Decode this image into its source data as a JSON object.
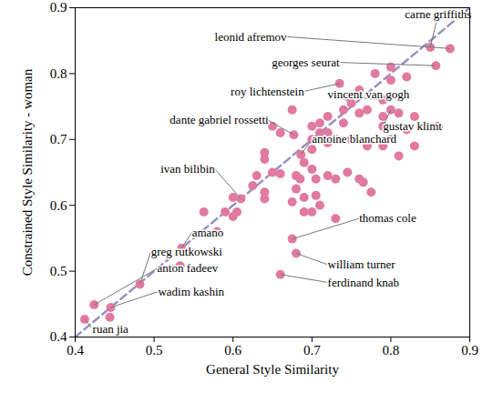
{
  "chart_data": {
    "type": "scatter",
    "xlabel": "General Style Similarity",
    "ylabel": "Constrained Style Similarity - woman",
    "xlim": [
      0.4,
      0.9
    ],
    "ylim": [
      0.4,
      0.9
    ],
    "xticks": [
      0.4,
      0.5,
      0.6,
      0.7,
      0.8,
      0.9
    ],
    "yticks": [
      0.4,
      0.5,
      0.6,
      0.7,
      0.8,
      0.9
    ],
    "color": "#e07aa0",
    "marker": "circle",
    "grid": false,
    "x": [
      0.85,
      0.875,
      0.857,
      0.735,
      0.79,
      0.677,
      0.8,
      0.686,
      0.61,
      0.675,
      0.535,
      0.68,
      0.66,
      0.482,
      0.424,
      0.445,
      0.412,
      0.8,
      0.82,
      0.8,
      0.78,
      0.76,
      0.745,
      0.75,
      0.77,
      0.79,
      0.76,
      0.74,
      0.72,
      0.74,
      0.71,
      0.72,
      0.7,
      0.73,
      0.75,
      0.79,
      0.8,
      0.81,
      0.82,
      0.83,
      0.83,
      0.81,
      0.86,
      0.79,
      0.77,
      0.675,
      0.7,
      0.71,
      0.72,
      0.7,
      0.69,
      0.68,
      0.7,
      0.64,
      0.64,
      0.65,
      0.66,
      0.63,
      0.625,
      0.64,
      0.64,
      0.6,
      0.605,
      0.6,
      0.59,
      0.563,
      0.58,
      0.68,
      0.675,
      0.69,
      0.705,
      0.69,
      0.7,
      0.71,
      0.73,
      0.76,
      0.765,
      0.775,
      0.745,
      0.73,
      0.72,
      0.705,
      0.685,
      0.66,
      0.65,
      0.533,
      0.444
    ],
    "y": [
      0.84,
      0.838,
      0.812,
      0.785,
      0.76,
      0.707,
      0.745,
      0.677,
      0.61,
      0.549,
      0.535,
      0.527,
      0.495,
      0.48,
      0.449,
      0.445,
      0.427,
      0.81,
      0.795,
      0.79,
      0.8,
      0.775,
      0.765,
      0.755,
      0.745,
      0.735,
      0.74,
      0.745,
      0.735,
      0.725,
      0.725,
      0.71,
      0.72,
      0.7,
      0.7,
      0.72,
      0.7,
      0.74,
      0.715,
      0.735,
      0.69,
      0.675,
      0.72,
      0.69,
      0.69,
      0.745,
      0.7,
      0.71,
      0.695,
      0.685,
      0.665,
      0.645,
      0.655,
      0.68,
      0.67,
      0.65,
      0.648,
      0.645,
      0.63,
      0.62,
      0.61,
      0.612,
      0.59,
      0.583,
      0.59,
      0.59,
      0.56,
      0.625,
      0.605,
      0.612,
      0.615,
      0.59,
      0.59,
      0.6,
      0.58,
      0.64,
      0.635,
      0.62,
      0.65,
      0.64,
      0.645,
      0.64,
      0.64,
      0.71,
      0.72,
      0.508,
      0.43
    ],
    "labels": [
      "carne griffiths",
      "leonid afremov",
      "georges seurat",
      "roy lichtenstein",
      "vincent van gogh",
      "dante gabriel rossetti",
      "gustav klimt",
      "antoine blanchard",
      "ivan bilibin",
      "thomas cole",
      "amano",
      "william turner",
      "ferdinand knab",
      "greg rutkowski",
      "anton fadeev",
      "wadim kashin",
      "ruan jia",
      null,
      null,
      null,
      null,
      null,
      null,
      null,
      null,
      null,
      null,
      null,
      null,
      null,
      null,
      null,
      null,
      null,
      null,
      null,
      null,
      null,
      null,
      null,
      null,
      null,
      null,
      null,
      null,
      null,
      null,
      null,
      null,
      null,
      null,
      null,
      null,
      null,
      null,
      null,
      null,
      null,
      null,
      null,
      null,
      null,
      null,
      null,
      null,
      null,
      null,
      null,
      null,
      null,
      null,
      null,
      null,
      null,
      null,
      null,
      null,
      null,
      null,
      null,
      null,
      null,
      null,
      null,
      null,
      null,
      null
    ]
  }
}
